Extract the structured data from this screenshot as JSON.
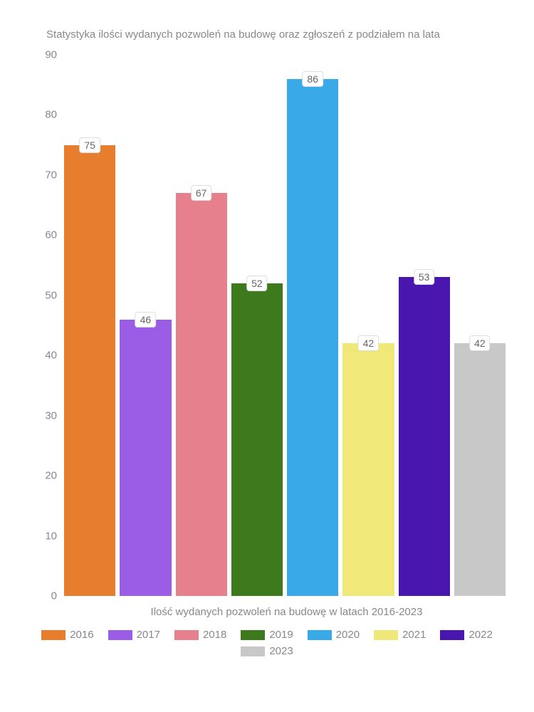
{
  "chart": {
    "type": "bar",
    "title": "Statystyka ilości wydanych pozwoleń na budowę oraz zgłoszeń z podziałem na lata",
    "xlabel": "Ilość wydanych pozwoleń na budowę w latach 2016-2023",
    "ylim": [
      0,
      90
    ],
    "ytick_step": 10,
    "yticks": [
      0,
      10,
      20,
      30,
      40,
      50,
      60,
      70,
      80,
      90
    ],
    "background_color": "#ffffff",
    "text_color": "#888888",
    "title_fontsize": 15,
    "label_fontsize": 15,
    "series": [
      {
        "year": "2016",
        "value": 75,
        "color": "#e67e2e"
      },
      {
        "year": "2017",
        "value": 46,
        "color": "#9b5de5"
      },
      {
        "year": "2018",
        "value": 67,
        "color": "#e5808c"
      },
      {
        "year": "2019",
        "value": 52,
        "color": "#3d7a1e"
      },
      {
        "year": "2020",
        "value": 86,
        "color": "#3aa9e8"
      },
      {
        "year": "2021",
        "value": 42,
        "color": "#f0e878"
      },
      {
        "year": "2022",
        "value": 53,
        "color": "#4a16b0"
      },
      {
        "year": "2023",
        "value": 42,
        "color": "#c8c8c8"
      }
    ],
    "bar_label_bg": "#ffffff",
    "bar_label_border": "#dddddd"
  }
}
